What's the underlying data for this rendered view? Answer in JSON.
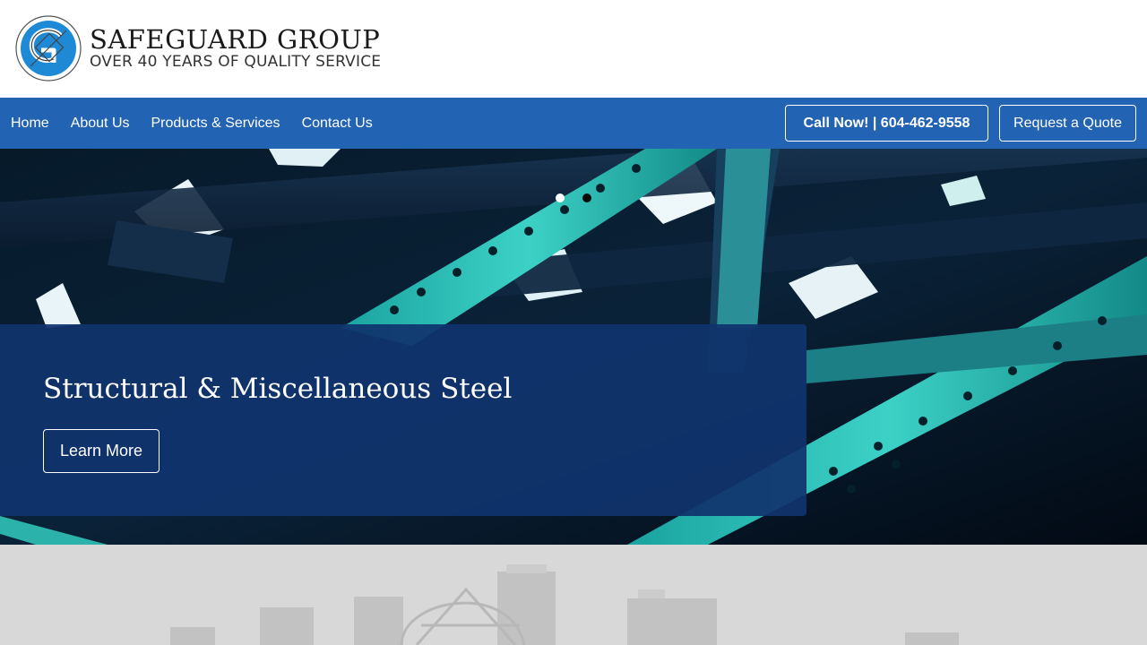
{
  "brand": {
    "name": "SAFEGUARD GROUP",
    "tagline": "OVER 40 YEARS OF QUALITY SERVICE",
    "logo_icon": "sg-monogram-logo",
    "color_primary": "#2263b3"
  },
  "nav": {
    "items": [
      {
        "label": "Home"
      },
      {
        "label": "About Us"
      },
      {
        "label": "Products & Services"
      },
      {
        "label": "Contact Us"
      }
    ],
    "call_label": "Call Now! | 604-462-9558",
    "quote_label": "Request a Quote"
  },
  "hero": {
    "slides_total": 2,
    "active_slide": 1,
    "title": "Structural & Miscellaneous Steel",
    "cta_label": "Learn More",
    "caption_bg": "#10346e"
  }
}
